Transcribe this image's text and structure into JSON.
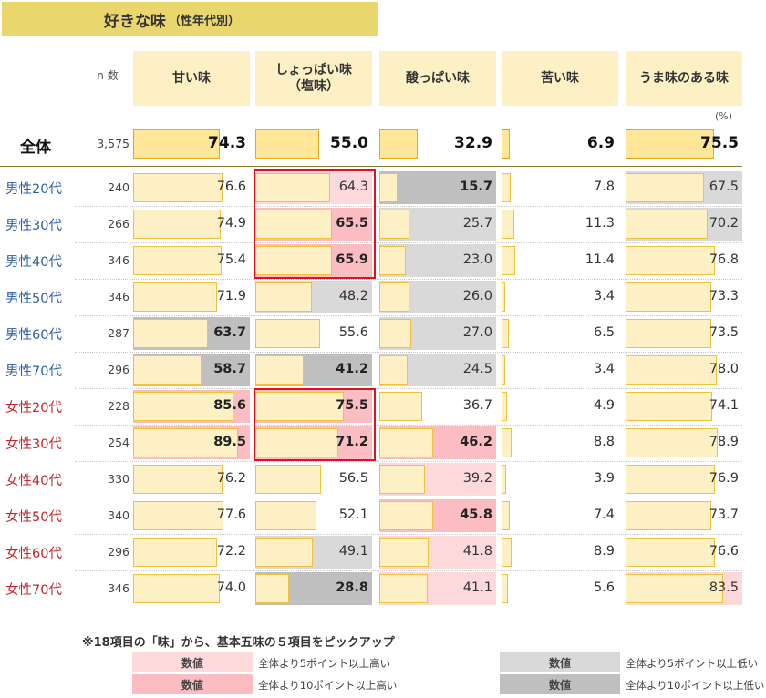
{
  "title": {
    "main": "好きな味",
    "sub": "（性年代別）"
  },
  "headers": {
    "n_label": "n 数",
    "columns": [
      "甘い味",
      "しょっぱい味\n（塩味）",
      "酸っぱい味",
      "苦い味",
      "うま味のある味"
    ]
  },
  "unit": "(%)",
  "colors": {
    "bar_fill": "#fdf0c5",
    "bar_border": "#f0c23c",
    "high5": "#fdd9dc",
    "high10": "#fbbcc2",
    "low5": "#d9d9d9",
    "low10": "#bfbfbf",
    "male": "#2d5ea8",
    "female": "#c0262b",
    "highlight_box": "#e01020"
  },
  "chart_data": {
    "type": "table",
    "columns": [
      "甘い味",
      "しょっぱい味（塩味）",
      "酸っぱい味",
      "苦い味",
      "うま味のある味"
    ],
    "total": {
      "label": "全体",
      "n": "3,575",
      "values": [
        "74.3",
        "55.0",
        "32.9",
        "6.9",
        "75.5"
      ]
    },
    "rows": [
      {
        "label": "男性20代",
        "group": "male",
        "n": "240",
        "values": [
          "76.6",
          "64.3",
          "15.7",
          "7.8",
          "67.5"
        ],
        "shade": [
          "",
          "high5",
          "low10",
          "",
          "low5"
        ]
      },
      {
        "label": "男性30代",
        "group": "male",
        "n": "266",
        "values": [
          "74.9",
          "65.5",
          "25.7",
          "11.3",
          "70.2"
        ],
        "shade": [
          "",
          "high10",
          "low5",
          "",
          "low5"
        ]
      },
      {
        "label": "男性40代",
        "group": "male",
        "n": "346",
        "values": [
          "75.4",
          "65.9",
          "23.0",
          "11.4",
          "76.8"
        ],
        "shade": [
          "",
          "high10",
          "low5",
          "",
          ""
        ]
      },
      {
        "label": "男性50代",
        "group": "male",
        "n": "346",
        "values": [
          "71.9",
          "48.2",
          "26.0",
          "3.4",
          "73.3"
        ],
        "shade": [
          "",
          "low5",
          "low5",
          "",
          ""
        ]
      },
      {
        "label": "男性60代",
        "group": "male",
        "n": "287",
        "values": [
          "63.7",
          "55.6",
          "27.0",
          "6.5",
          "73.5"
        ],
        "shade": [
          "low10",
          "",
          "low5",
          "",
          ""
        ]
      },
      {
        "label": "男性70代",
        "group": "male",
        "n": "296",
        "values": [
          "58.7",
          "41.2",
          "24.5",
          "3.4",
          "78.0"
        ],
        "shade": [
          "low10",
          "low10",
          "low5",
          "",
          ""
        ]
      },
      {
        "label": "女性20代",
        "group": "female",
        "n": "228",
        "values": [
          "85.6",
          "75.5",
          "36.7",
          "4.9",
          "74.1"
        ],
        "shade": [
          "high10",
          "high10",
          "",
          "",
          ""
        ]
      },
      {
        "label": "女性30代",
        "group": "female",
        "n": "254",
        "values": [
          "89.5",
          "71.2",
          "46.2",
          "8.8",
          "78.9"
        ],
        "shade": [
          "high10",
          "high10",
          "high10",
          "",
          ""
        ]
      },
      {
        "label": "女性40代",
        "group": "female",
        "n": "330",
        "values": [
          "76.2",
          "56.5",
          "39.2",
          "3.9",
          "76.9"
        ],
        "shade": [
          "",
          "",
          "high5",
          "",
          ""
        ]
      },
      {
        "label": "女性50代",
        "group": "female",
        "n": "340",
        "values": [
          "77.6",
          "52.1",
          "45.8",
          "7.4",
          "73.7"
        ],
        "shade": [
          "",
          "",
          "high10",
          "",
          ""
        ]
      },
      {
        "label": "女性60代",
        "group": "female",
        "n": "296",
        "values": [
          "72.2",
          "49.1",
          "41.8",
          "8.9",
          "76.6"
        ],
        "shade": [
          "",
          "low5",
          "high5",
          "",
          ""
        ]
      },
      {
        "label": "女性70代",
        "group": "female",
        "n": "346",
        "values": [
          "74.0",
          "28.8",
          "41.1",
          "5.6",
          "83.5"
        ],
        "shade": [
          "",
          "low10",
          "high5",
          "",
          "high5"
        ]
      }
    ],
    "xlim": [
      0,
      100
    ]
  },
  "note": "※18項目の「味」から、基本五味の５項目をピックアップ",
  "legend": [
    {
      "swatch": "数値",
      "shade": "high5",
      "text": "全体より5ポイント以上高い"
    },
    {
      "swatch": "数値",
      "shade": "high10",
      "text": "全体より10ポイント以上高い"
    },
    {
      "swatch": "数値",
      "shade": "low5",
      "text": "全体より5ポイント以上低い"
    },
    {
      "swatch": "数値",
      "shade": "low10",
      "text": "全体より10ポイント以上低い"
    }
  ]
}
